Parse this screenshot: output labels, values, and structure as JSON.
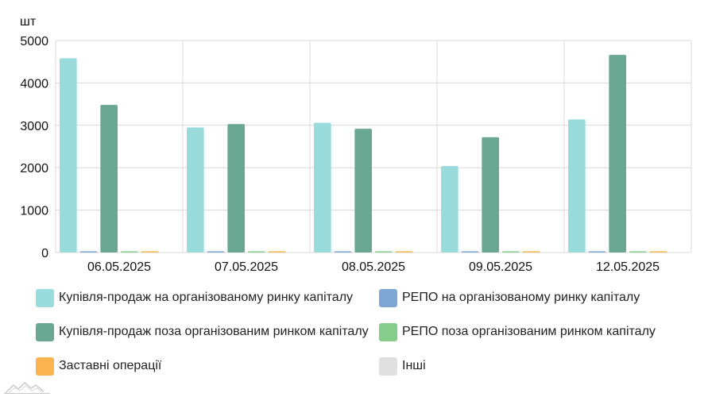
{
  "chart_data": {
    "type": "bar",
    "unit": "шт",
    "categories": [
      "06.05.2025",
      "07.05.2025",
      "08.05.2025",
      "09.05.2025",
      "12.05.2025"
    ],
    "ylim": [
      0,
      5000
    ],
    "yticks": [
      0,
      1000,
      2000,
      3000,
      4000,
      5000
    ],
    "grid": true,
    "legend_position": "bottom",
    "series": [
      {
        "name": "Купівля-продаж на організованому ринку капіталу",
        "color": "#9adcdc",
        "values": [
          4580,
          2950,
          3060,
          2040,
          3140
        ]
      },
      {
        "name": "РЕПО на організованому ринку капіталу",
        "color": "#7fa7d6",
        "values": [
          15,
          12,
          10,
          8,
          6
        ]
      },
      {
        "name": "Купівля-продаж поза організованим ринком капіталу",
        "color": "#6aa894",
        "values": [
          3480,
          3030,
          2920,
          2720,
          4660
        ]
      },
      {
        "name": "РЕПО поза організованим ринком капіталу",
        "color": "#86cc8a",
        "values": [
          3,
          3,
          3,
          3,
          3
        ]
      },
      {
        "name": "Заставні операції",
        "color": "#fbb450",
        "values": [
          3,
          3,
          3,
          3,
          3
        ]
      },
      {
        "name": "Інші",
        "color": "#e0e0e0",
        "values": [
          0,
          0,
          0,
          0,
          0
        ]
      }
    ]
  }
}
